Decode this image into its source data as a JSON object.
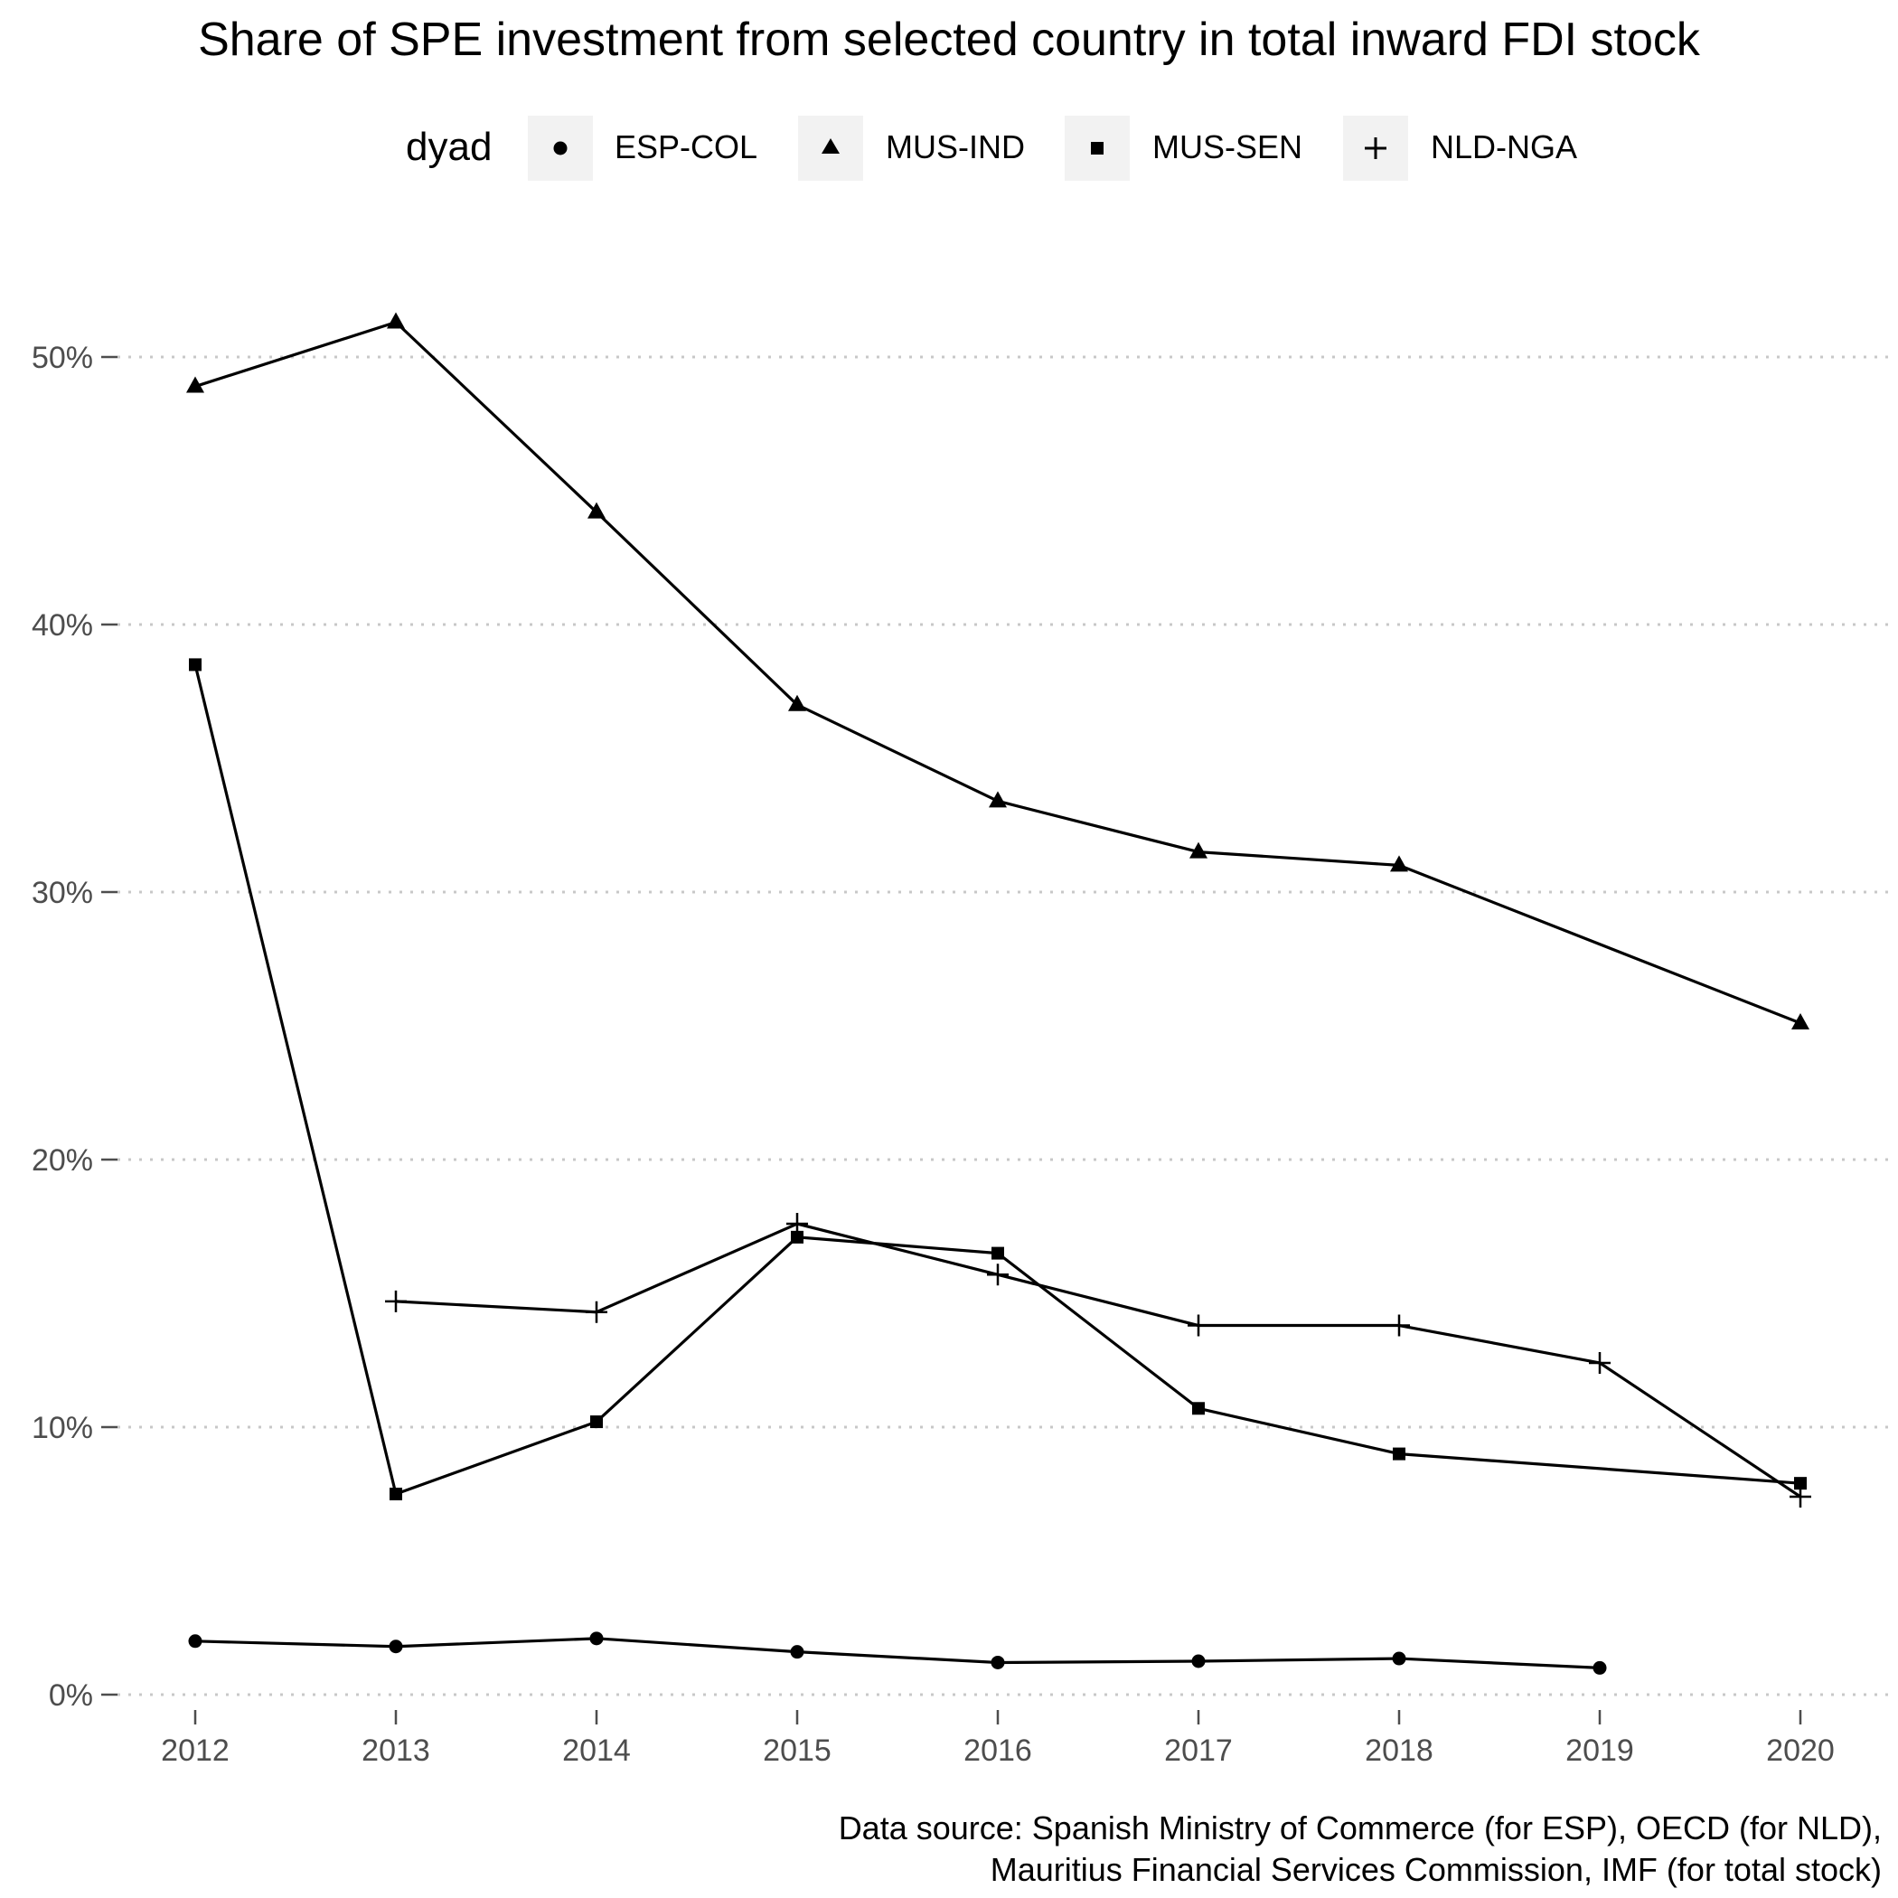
{
  "chart_data": {
    "type": "line",
    "title": "Share of SPE investment from selected country in total inward FDI stock",
    "legend_title": "dyad",
    "legend_position": "top",
    "x_ticks": [
      "2012",
      "2013",
      "2014",
      "2015",
      "2016",
      "2017",
      "2018",
      "2019",
      "2020"
    ],
    "y_ticks": [
      "0%",
      "10%",
      "20%",
      "30%",
      "40%",
      "50%"
    ],
    "ylim": [
      0,
      52
    ],
    "grid": "horizontal dotted",
    "series": [
      {
        "name": "ESP-COL",
        "marker": "circle",
        "points": [
          [
            2012,
            2.0
          ],
          [
            2013,
            1.8
          ],
          [
            2014,
            2.1
          ],
          [
            2015,
            1.6
          ],
          [
            2016,
            1.2
          ],
          [
            2017,
            1.25
          ],
          [
            2018,
            1.35
          ],
          [
            2019,
            1.0
          ]
        ]
      },
      {
        "name": "MUS-IND",
        "marker": "triangle",
        "points": [
          [
            2012,
            48.9
          ],
          [
            2013,
            51.3
          ],
          [
            2014,
            44.2
          ],
          [
            2015,
            37.0
          ],
          [
            2016,
            33.4
          ],
          [
            2017,
            31.5
          ],
          [
            2018,
            31.0
          ],
          [
            2020,
            25.1
          ]
        ]
      },
      {
        "name": "MUS-SEN",
        "marker": "square",
        "points": [
          [
            2012,
            38.5
          ],
          [
            2013,
            7.5
          ],
          [
            2014,
            10.2
          ],
          [
            2015,
            17.1
          ],
          [
            2016,
            16.5
          ],
          [
            2017,
            10.7
          ],
          [
            2018,
            9.0
          ],
          [
            2020,
            7.9
          ]
        ]
      },
      {
        "name": "NLD-NGA",
        "marker": "plus",
        "points": [
          [
            2013,
            14.7
          ],
          [
            2014,
            14.3
          ],
          [
            2015,
            17.6
          ],
          [
            2016,
            15.7
          ],
          [
            2017,
            13.8
          ],
          [
            2018,
            13.8
          ],
          [
            2019,
            12.4
          ],
          [
            2020,
            7.4
          ]
        ]
      }
    ],
    "caption_lines": [
      "Data source: Spanish Ministry of Commerce (for ESP), OECD (for NLD),",
      "Mauritius Financial Services Commission, IMF (for total stock)"
    ],
    "colors": {
      "line": "#000000",
      "grid": "#c8c8c8",
      "tick_text": "#4d4d4d",
      "legend_key_bg": "#f2f2f2"
    }
  }
}
